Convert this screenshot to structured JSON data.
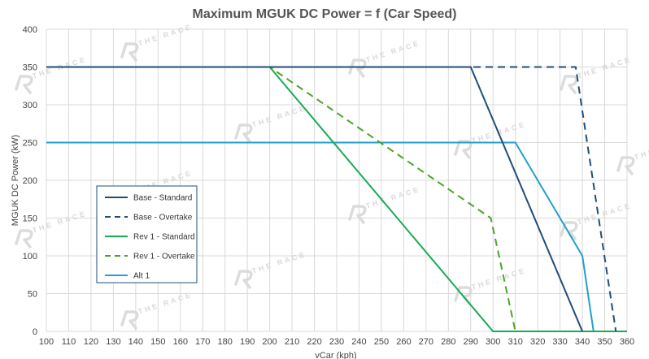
{
  "chart_data": {
    "type": "line",
    "title": "Maximum MGUK DC Power = f (Car Speed)",
    "xlabel": "vCar (kph)",
    "ylabel": "MGUK DC Power (kW)",
    "xlim": [
      100,
      360
    ],
    "ylim": [
      0,
      400
    ],
    "xticks": [
      100,
      110,
      120,
      130,
      140,
      150,
      160,
      170,
      180,
      190,
      200,
      210,
      220,
      230,
      240,
      250,
      260,
      270,
      280,
      290,
      300,
      310,
      320,
      330,
      340,
      350,
      360
    ],
    "yticks": [
      0,
      50,
      100,
      150,
      200,
      250,
      300,
      350,
      400
    ],
    "grid": true,
    "legend_position": "lower-left",
    "series": [
      {
        "name": "Base - Standard",
        "color": "#1f4e79",
        "dash": "solid",
        "x": [
          100,
          290,
          340
        ],
        "y": [
          350,
          350,
          0
        ]
      },
      {
        "name": "Base - Overtake",
        "color": "#1f4e79",
        "dash": "dashed",
        "x": [
          100,
          337,
          355
        ],
        "y": [
          350,
          350,
          0
        ]
      },
      {
        "name": "Rev 1 - Standard",
        "color": "#1aaa55",
        "dash": "solid",
        "x": [
          100,
          200,
          300,
          360
        ],
        "y": [
          350,
          350,
          0,
          0
        ]
      },
      {
        "name": "Rev 1 - Overtake",
        "color": "#4aa42a",
        "dash": "dashed",
        "x": [
          100,
          200,
          299,
          310
        ],
        "y": [
          350,
          350,
          150,
          0
        ]
      },
      {
        "name": "Alt 1",
        "color": "#23a0c8",
        "dash": "solid",
        "x": [
          100,
          310,
          340,
          345,
          360
        ],
        "y": [
          250,
          250,
          100,
          0,
          0
        ]
      }
    ]
  },
  "watermark": {
    "text": "THE RACE"
  }
}
